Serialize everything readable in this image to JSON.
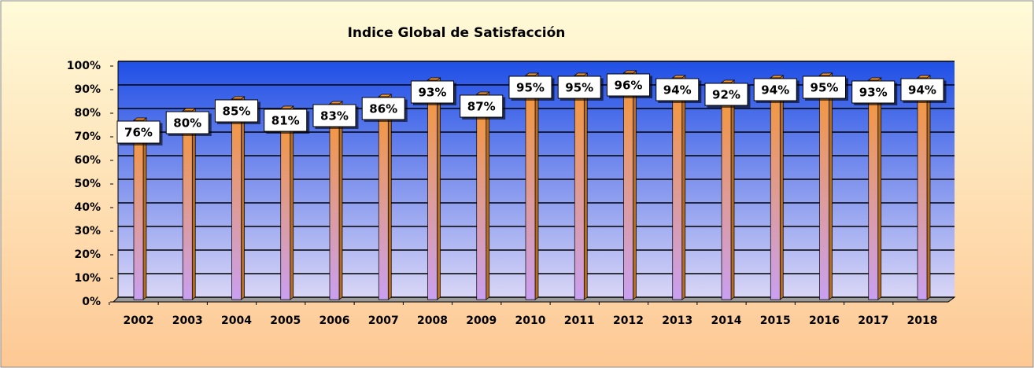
{
  "chart_data": {
    "type": "bar",
    "title": "Indice Global de Satisfacción",
    "categories": [
      "2002",
      "2003",
      "2004",
      "2005",
      "2006",
      "2007",
      "2008",
      "2009",
      "2010",
      "2011",
      "2012",
      "2013",
      "2014",
      "2015",
      "2016",
      "2017",
      "2018"
    ],
    "values": [
      76,
      80,
      85,
      81,
      83,
      86,
      93,
      87,
      95,
      95,
      96,
      94,
      92,
      94,
      95,
      93,
      94
    ],
    "value_labels": [
      "76%",
      "80%",
      "85%",
      "81%",
      "83%",
      "86%",
      "93%",
      "87%",
      "95%",
      "95%",
      "96%",
      "94%",
      "92%",
      "94%",
      "95%",
      "93%",
      "94%"
    ],
    "color": "#f7962f",
    "ylim": [
      0,
      100
    ],
    "yticks": [
      {
        "value": 0,
        "label": "0%"
      },
      {
        "value": 10,
        "label": "10%"
      },
      {
        "value": 20,
        "label": "20%"
      },
      {
        "value": 30,
        "label": "30%"
      },
      {
        "value": 40,
        "label": "40%"
      },
      {
        "value": 50,
        "label": "50%"
      },
      {
        "value": 60,
        "label": "60%"
      },
      {
        "value": 70,
        "label": "70%"
      },
      {
        "value": 80,
        "label": "80%"
      },
      {
        "value": 90,
        "label": "90%"
      },
      {
        "value": 100,
        "label": "100%"
      }
    ],
    "grid": true
  }
}
